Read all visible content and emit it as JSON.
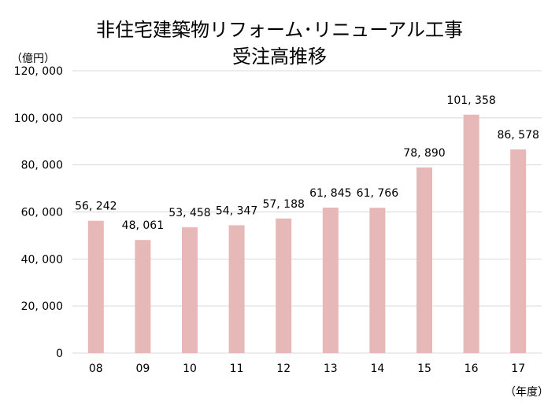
{
  "chart_data": {
    "type": "bar",
    "title_lines": [
      "非住宅建築物リフォーム･リニューアル工事",
      "受注高推移"
    ],
    "y_unit_label": "（億円）",
    "x_unit_label": "（年度）",
    "categories": [
      "08",
      "09",
      "10",
      "11",
      "12",
      "13",
      "14",
      "15",
      "16",
      "17"
    ],
    "values": [
      56242,
      48061,
      53458,
      54347,
      57188,
      61845,
      61766,
      78890,
      101358,
      86578
    ],
    "data_labels": [
      "56, 242",
      "48, 061",
      "53, 458",
      "54, 347",
      "57, 188",
      "61, 845",
      "61, 766",
      "78, 890",
      "101, 358",
      "86, 578"
    ],
    "ylim": [
      0,
      120000
    ],
    "yticks": [
      0,
      20000,
      40000,
      60000,
      80000,
      100000,
      120000
    ],
    "ytick_labels": [
      "0",
      "20, 000",
      "40, 000",
      "60, 000",
      "80, 000",
      "100, 000",
      "120, 000"
    ],
    "grid": true,
    "bar_color": "#e6b8b7",
    "grid_color": "#d9d9d9"
  }
}
